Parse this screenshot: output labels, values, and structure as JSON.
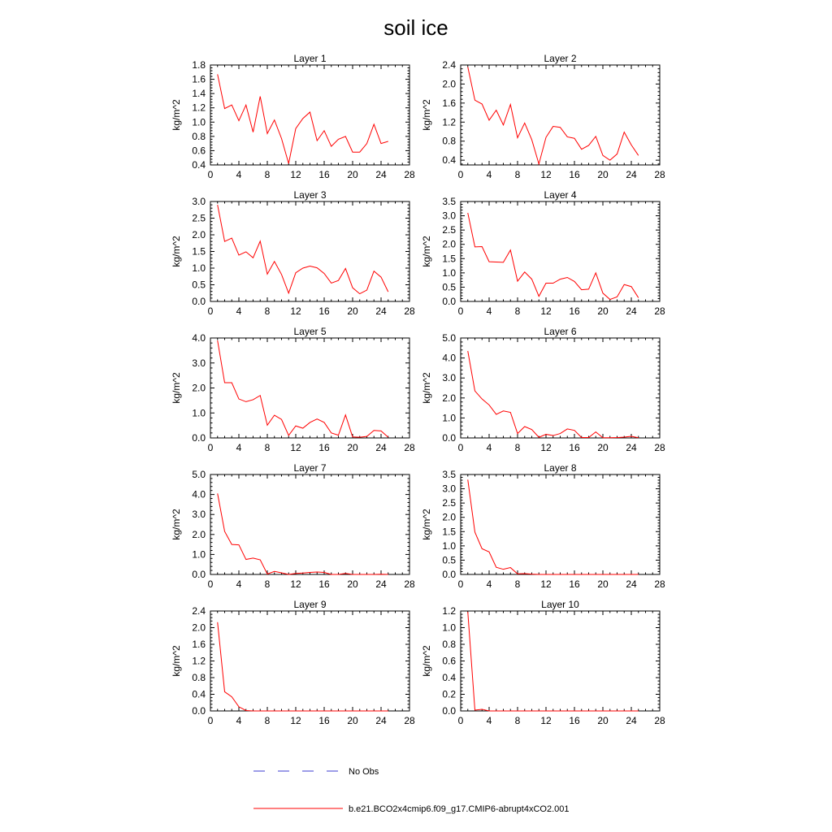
{
  "title": "soil ice",
  "legend": {
    "placement": "bottom",
    "entries": [
      {
        "label": "No Obs",
        "color": "#3b3bd0",
        "style": "dashed"
      },
      {
        "label": "b.e21.BCO2x4cmip6.f09_g17.CMIP6-abrupt4xCO2.001",
        "color": "#ff0000",
        "style": "solid"
      }
    ]
  },
  "chart_data": [
    {
      "type": "line",
      "title": "Layer 1",
      "ylabel": "kg/m^2",
      "xlim": [
        0,
        28
      ],
      "xticks": [
        "0",
        "4",
        "8",
        "12",
        "16",
        "20",
        "24",
        "28"
      ],
      "ylim": [
        0.4,
        1.8
      ],
      "yticks": [
        "0.4",
        "0.6",
        "0.8",
        "1.0",
        "1.2",
        "1.4",
        "1.6",
        "1.8"
      ],
      "x": [
        1,
        2,
        3,
        4,
        5,
        6,
        7,
        8,
        9,
        10,
        11,
        12,
        13,
        14,
        15,
        16,
        17,
        18,
        19,
        20,
        21,
        22,
        23,
        24,
        25
      ],
      "series": [
        {
          "color": "#ff0000",
          "values": [
            1.67,
            1.19,
            1.24,
            1.02,
            1.24,
            0.86,
            1.36,
            0.84,
            1.03,
            0.77,
            0.42,
            0.91,
            1.05,
            1.14,
            0.74,
            0.88,
            0.66,
            0.76,
            0.8,
            0.58,
            0.58,
            0.7,
            0.97,
            0.7,
            0.73
          ]
        }
      ]
    },
    {
      "type": "line",
      "title": "Layer 2",
      "ylabel": "kg/m^2",
      "xlim": [
        0,
        28
      ],
      "xticks": [
        "0",
        "4",
        "8",
        "12",
        "16",
        "20",
        "24",
        "28"
      ],
      "ylim": [
        0.3,
        2.4
      ],
      "yticks": [
        "0.4",
        "0.8",
        "1.2",
        "1.6",
        "2.0",
        "2.4"
      ],
      "x": [
        1,
        2,
        3,
        4,
        5,
        6,
        7,
        8,
        9,
        10,
        11,
        12,
        13,
        14,
        15,
        16,
        17,
        18,
        19,
        20,
        21,
        22,
        23,
        24,
        25
      ],
      "series": [
        {
          "color": "#ff0000",
          "values": [
            2.36,
            1.66,
            1.58,
            1.24,
            1.45,
            1.14,
            1.57,
            0.87,
            1.18,
            0.83,
            0.32,
            0.88,
            1.11,
            1.09,
            0.89,
            0.86,
            0.63,
            0.71,
            0.9,
            0.5,
            0.4,
            0.53,
            0.99,
            0.72,
            0.5
          ]
        }
      ]
    },
    {
      "type": "line",
      "title": "Layer 3",
      "ylabel": "kg/m^2",
      "xlim": [
        0,
        28
      ],
      "xticks": [
        "0",
        "4",
        "8",
        "12",
        "16",
        "20",
        "24",
        "28"
      ],
      "ylim": [
        0,
        3.0
      ],
      "yticks": [
        "0.0",
        "0.5",
        "1.0",
        "1.5",
        "2.0",
        "2.5",
        "3.0"
      ],
      "x": [
        1,
        2,
        3,
        4,
        5,
        6,
        7,
        8,
        9,
        10,
        11,
        12,
        13,
        14,
        15,
        16,
        17,
        18,
        19,
        20,
        21,
        22,
        23,
        24,
        25
      ],
      "series": [
        {
          "color": "#ff0000",
          "values": [
            2.9,
            1.8,
            1.9,
            1.39,
            1.49,
            1.31,
            1.81,
            0.82,
            1.2,
            0.81,
            0.25,
            0.86,
            1.0,
            1.06,
            1.01,
            0.84,
            0.55,
            0.63,
            0.99,
            0.41,
            0.23,
            0.34,
            0.91,
            0.73,
            0.29
          ]
        }
      ]
    },
    {
      "type": "line",
      "title": "Layer 4",
      "ylabel": "kg/m^2",
      "xlim": [
        0,
        28
      ],
      "xticks": [
        "0",
        "4",
        "8",
        "12",
        "16",
        "20",
        "24",
        "28"
      ],
      "ylim": [
        0,
        3.5
      ],
      "yticks": [
        "0.0",
        "0.5",
        "1.0",
        "1.5",
        "2.0",
        "2.5",
        "3.0",
        "3.5"
      ],
      "x": [
        1,
        2,
        3,
        4,
        5,
        6,
        7,
        8,
        9,
        10,
        11,
        12,
        13,
        14,
        15,
        16,
        17,
        18,
        19,
        20,
        21,
        22,
        23,
        24,
        25
      ],
      "series": [
        {
          "color": "#ff0000",
          "values": [
            3.1,
            1.91,
            1.92,
            1.39,
            1.38,
            1.37,
            1.8,
            0.71,
            1.03,
            0.78,
            0.18,
            0.64,
            0.64,
            0.78,
            0.84,
            0.7,
            0.41,
            0.43,
            1.0,
            0.29,
            0.07,
            0.16,
            0.59,
            0.52,
            0.13
          ]
        }
      ]
    },
    {
      "type": "line",
      "title": "Layer 5",
      "ylabel": "kg/m^2",
      "xlim": [
        0,
        28
      ],
      "xticks": [
        "0",
        "4",
        "8",
        "12",
        "16",
        "20",
        "24",
        "28"
      ],
      "ylim": [
        0,
        4.0
      ],
      "yticks": [
        "0.0",
        "1.0",
        "2.0",
        "3.0",
        "4.0"
      ],
      "x": [
        1,
        2,
        3,
        4,
        5,
        6,
        7,
        8,
        9,
        10,
        11,
        12,
        13,
        14,
        15,
        16,
        17,
        18,
        19,
        20,
        21,
        22,
        23,
        24,
        25
      ],
      "series": [
        {
          "color": "#ff0000",
          "values": [
            3.9,
            2.21,
            2.21,
            1.56,
            1.45,
            1.53,
            1.7,
            0.51,
            0.91,
            0.74,
            0.1,
            0.48,
            0.39,
            0.62,
            0.76,
            0.62,
            0.2,
            0.11,
            0.92,
            0.04,
            0.03,
            0.06,
            0.3,
            0.28,
            0.03
          ]
        }
      ]
    },
    {
      "type": "line",
      "title": "Layer 6",
      "ylabel": "kg/m^2",
      "xlim": [
        0,
        28
      ],
      "xticks": [
        "0",
        "4",
        "8",
        "12",
        "16",
        "20",
        "24",
        "28"
      ],
      "ylim": [
        0,
        5.0
      ],
      "yticks": [
        "0.0",
        "1.0",
        "2.0",
        "3.0",
        "4.0",
        "5.0"
      ],
      "x": [
        1,
        2,
        3,
        4,
        5,
        6,
        7,
        8,
        9,
        10,
        11,
        12,
        13,
        14,
        15,
        16,
        17,
        18,
        19,
        20,
        21,
        22,
        23,
        24,
        25
      ],
      "series": [
        {
          "color": "#ff0000",
          "values": [
            4.35,
            2.35,
            1.95,
            1.65,
            1.18,
            1.35,
            1.28,
            0.22,
            0.57,
            0.42,
            0.03,
            0.18,
            0.12,
            0.22,
            0.45,
            0.38,
            0.02,
            0.02,
            0.3,
            0.01,
            0.01,
            0.02,
            0.04,
            0.08,
            0.01
          ]
        }
      ]
    },
    {
      "type": "line",
      "title": "Layer 7",
      "ylabel": "kg/m^2",
      "xlim": [
        0,
        28
      ],
      "xticks": [
        "0",
        "4",
        "8",
        "12",
        "16",
        "20",
        "24",
        "28"
      ],
      "ylim": [
        0,
        5.0
      ],
      "yticks": [
        "0.0",
        "1.0",
        "2.0",
        "3.0",
        "4.0",
        "5.0"
      ],
      "x": [
        1,
        2,
        3,
        4,
        5,
        6,
        7,
        8,
        9,
        10,
        11,
        12,
        13,
        14,
        15,
        16,
        17,
        18,
        19,
        20,
        21,
        22,
        23,
        24,
        25
      ],
      "series": [
        {
          "color": "#ff0000",
          "values": [
            4.05,
            2.15,
            1.5,
            1.48,
            0.75,
            0.82,
            0.73,
            0.02,
            0.15,
            0.08,
            0.0,
            0.05,
            0.07,
            0.1,
            0.12,
            0.1,
            0.0,
            0.0,
            0.05,
            0.0,
            0.0,
            0.0,
            0.0,
            0.01,
            0.0
          ]
        }
      ]
    },
    {
      "type": "line",
      "title": "Layer 8",
      "ylabel": "kg/m^2",
      "xlim": [
        0,
        28
      ],
      "xticks": [
        "0",
        "4",
        "8",
        "12",
        "16",
        "20",
        "24",
        "28"
      ],
      "ylim": [
        0,
        3.5
      ],
      "yticks": [
        "0.0",
        "0.5",
        "1.0",
        "1.5",
        "2.0",
        "2.5",
        "3.0",
        "3.5"
      ],
      "x": [
        1,
        2,
        3,
        4,
        5,
        6,
        7,
        8,
        9,
        10,
        11,
        12,
        13,
        14,
        15,
        16,
        17,
        18,
        19,
        20,
        21,
        22,
        23,
        24,
        25
      ],
      "series": [
        {
          "color": "#ff0000",
          "values": [
            3.32,
            1.48,
            0.9,
            0.79,
            0.25,
            0.18,
            0.24,
            0.02,
            0.03,
            0.01,
            0.0,
            0.0,
            0.0,
            0.0,
            0.0,
            0.0,
            0.0,
            0.0,
            0.0,
            0.0,
            0.0,
            0.0,
            0.0,
            0.0,
            0.0
          ]
        }
      ]
    },
    {
      "type": "line",
      "title": "Layer 9",
      "ylabel": "kg/m^2",
      "xlim": [
        0,
        28
      ],
      "xticks": [
        "0",
        "4",
        "8",
        "12",
        "16",
        "20",
        "24",
        "28"
      ],
      "ylim": [
        0,
        2.4
      ],
      "yticks": [
        "0.0",
        "0.4",
        "0.8",
        "1.2",
        "1.6",
        "2.0",
        "2.4"
      ],
      "x": [
        1,
        2,
        3,
        4,
        5,
        6,
        7,
        8,
        9,
        10,
        11,
        12,
        13,
        14,
        15,
        16,
        17,
        18,
        19,
        20,
        21,
        22,
        23,
        24,
        25
      ],
      "series": [
        {
          "color": "#ff0000",
          "values": [
            2.13,
            0.46,
            0.34,
            0.1,
            0.01,
            0.0,
            0.0,
            0.0,
            0.0,
            0.0,
            0.0,
            0.0,
            0.0,
            0.0,
            0.0,
            0.0,
            0.0,
            0.0,
            0.0,
            0.0,
            0.0,
            0.0,
            0.0,
            0.0,
            0.0
          ]
        }
      ]
    },
    {
      "type": "line",
      "title": "Layer 10",
      "ylabel": "kg/m^2",
      "xlim": [
        0,
        28
      ],
      "xticks": [
        "0",
        "4",
        "8",
        "12",
        "16",
        "20",
        "24",
        "28"
      ],
      "ylim": [
        0,
        1.2
      ],
      "yticks": [
        "0.0",
        "0.2",
        "0.4",
        "0.6",
        "0.8",
        "1.0",
        "1.2"
      ],
      "x": [
        1,
        2,
        3,
        4,
        5,
        6,
        7,
        8,
        9,
        10,
        11,
        12,
        13,
        14,
        15,
        16,
        17,
        18,
        19,
        20,
        21,
        22,
        23,
        24,
        25
      ],
      "series": [
        {
          "color": "#ff0000",
          "values": [
            1.19,
            0.01,
            0.02,
            0.0,
            0.0,
            0.0,
            0.0,
            0.0,
            0.0,
            0.0,
            0.0,
            0.0,
            0.0,
            0.0,
            0.0,
            0.0,
            0.0,
            0.0,
            0.0,
            0.0,
            0.0,
            0.0,
            0.0,
            0.0,
            0.0
          ]
        }
      ]
    }
  ]
}
